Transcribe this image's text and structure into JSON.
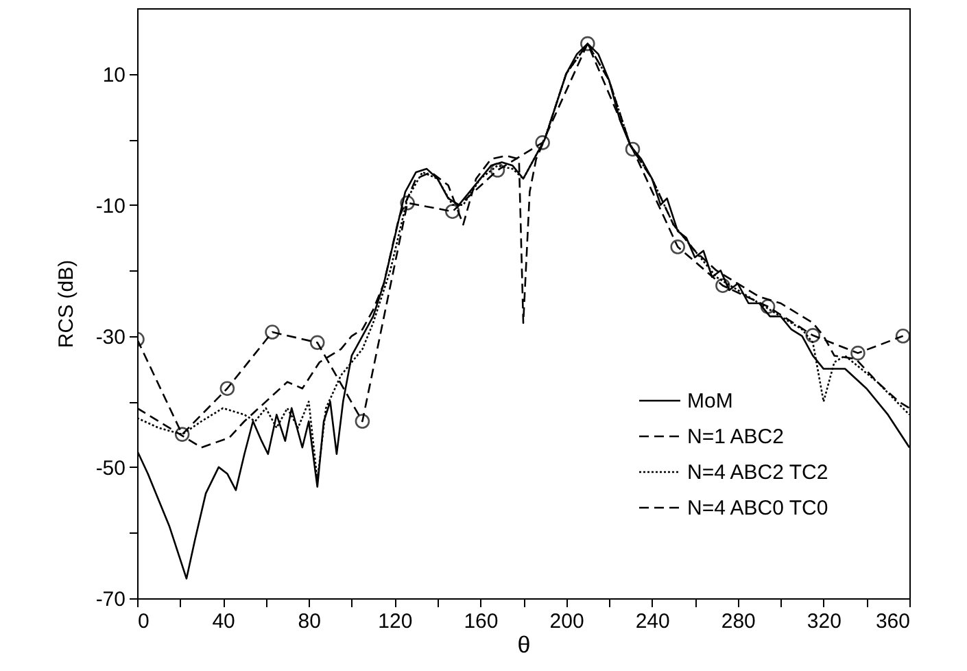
{
  "chart_data": {
    "type": "line",
    "xlabel": "θ",
    "ylabel": "RCS (dB)",
    "xlim": [
      0,
      360
    ],
    "ylim": [
      -70,
      20
    ],
    "xticks": [
      0,
      {
        "value": 20,
        "label": null
      },
      40,
      {
        "value": 60,
        "label": null
      },
      80,
      {
        "value": 100,
        "label": null
      },
      120,
      {
        "value": 140,
        "label": null
      },
      160,
      {
        "value": 180,
        "label": null
      },
      200,
      {
        "value": 220,
        "label": null
      },
      240,
      {
        "value": 260,
        "label": null
      },
      280,
      {
        "value": 300,
        "label": null
      },
      320,
      {
        "value": 340,
        "label": null
      },
      360
    ],
    "yticks": [
      -70,
      {
        "value": -60,
        "label": null
      },
      -50,
      {
        "value": -40,
        "label": null
      },
      -30,
      {
        "value": -20,
        "label": null
      },
      -10,
      {
        "value": 0,
        "label": null
      },
      10
    ],
    "grid": false,
    "legend": "bottom right",
    "series": [
      {
        "name": "MoM",
        "color": "#000000",
        "line_style": "solid",
        "marker": "none",
        "x": [
          0,
          5,
          10,
          15,
          20,
          23,
          27,
          32,
          38,
          42,
          46,
          50,
          54,
          58,
          61,
          65,
          69,
          72,
          77,
          80,
          84,
          87,
          90,
          93,
          96,
          100,
          105,
          110,
          115,
          120,
          125,
          130,
          135,
          140,
          145,
          150,
          155,
          160,
          165,
          170,
          175,
          180,
          185,
          190,
          195,
          200,
          205,
          210,
          215,
          220,
          225,
          230,
          235,
          240,
          244,
          247,
          252,
          256,
          260,
          264,
          268,
          272,
          276,
          280,
          285,
          290,
          295,
          300,
          305,
          310,
          315,
          320,
          325,
          330,
          340,
          350,
          360
        ],
        "values": [
          -47.5,
          -51,
          -55,
          -59,
          -64,
          -67,
          -61,
          -54,
          -50,
          -51,
          -53.5,
          -48,
          -43,
          -46,
          -48,
          -42,
          -46,
          -41,
          -47,
          -43,
          -53,
          -43,
          -40,
          -48,
          -40,
          -33,
          -30,
          -27,
          -22,
          -15,
          -8,
          -5,
          -4.5,
          -6,
          -9,
          -10,
          -8,
          -6,
          -4,
          -3.5,
          -4,
          -6,
          -3,
          0,
          5,
          10,
          13,
          14.6,
          13,
          9,
          3,
          -1,
          -3,
          -6,
          -10,
          -9,
          -14,
          -15,
          -18,
          -17,
          -21,
          -20,
          -23,
          -22,
          -25,
          -25,
          -27,
          -27,
          -29,
          -30,
          -33,
          -35,
          -35,
          -35,
          -38,
          -42,
          -47
        ]
      },
      {
        "name": "N=1 ABC2",
        "color": "#000000",
        "line_style": "dashed",
        "marker": "none",
        "x": [
          0,
          10,
          20,
          30,
          43,
          50,
          60,
          70,
          77,
          85,
          95,
          100,
          105,
          110,
          115,
          122,
          130,
          137,
          145,
          152,
          158,
          165,
          172,
          178,
          180,
          183,
          186,
          190,
          200,
          210,
          220,
          230,
          240,
          250,
          260,
          270,
          280,
          290,
          300,
          310,
          315,
          320,
          325,
          335,
          345,
          355,
          360
        ],
        "values": [
          -41,
          -43,
          -45,
          -47,
          -45.5,
          -43,
          -40,
          -37,
          -38,
          -34,
          -32,
          -30,
          -29,
          -26,
          -22,
          -12,
          -6,
          -5,
          -7,
          -13,
          -6,
          -3,
          -2.5,
          -3,
          -28,
          -8,
          -3,
          0,
          10,
          14.6,
          9,
          -1,
          -6,
          -13,
          -17,
          -20,
          -22,
          -24,
          -25,
          -27,
          -28,
          -30,
          -33,
          -33.5,
          -37,
          -40,
          -41
        ]
      },
      {
        "name": "N=4 ABC2 TC2",
        "color": "#000000",
        "line_style": "dotted",
        "marker": "none",
        "x": [
          0,
          10,
          21,
          30,
          40,
          50,
          55,
          60,
          65,
          70,
          75,
          80,
          84,
          88,
          95,
          100,
          105,
          110,
          118,
          126,
          133,
          140,
          147,
          152,
          160,
          168,
          175,
          180,
          185,
          190,
          200,
          210,
          220,
          230,
          240,
          250,
          260,
          270,
          280,
          290,
          300,
          310,
          315,
          320,
          325,
          330,
          345,
          360
        ],
        "values": [
          -42.5,
          -44,
          -45,
          -43,
          -41,
          -42,
          -43,
          -41,
          -44,
          -41,
          -44,
          -40,
          -52,
          -41,
          -36,
          -34,
          -32,
          -28,
          -20,
          -9,
          -5,
          -6,
          -10,
          -10,
          -6,
          -4,
          -4.5,
          -6,
          -3,
          0,
          10,
          14.6,
          9,
          -1,
          -6,
          -13,
          -17,
          -21,
          -23,
          -25,
          -27,
          -29,
          -31,
          -40,
          -34,
          -33,
          -37,
          -42
        ]
      },
      {
        "name": "N=4 ABC0 TC0",
        "color": "#000000",
        "line_style": "dashed",
        "marker": "circle",
        "x": [
          0,
          21,
          42,
          63,
          84,
          105,
          126,
          147,
          168,
          189,
          210,
          231,
          252,
          273,
          294,
          315,
          336,
          357
        ],
        "values": [
          -30.5,
          -45,
          -38,
          -29.4,
          -31,
          -43,
          -9.7,
          -11,
          -4.7,
          -0.5,
          14.6,
          -1.5,
          -16.4,
          -22.3,
          -25.5,
          -29.9,
          -32.6,
          -30
        ]
      }
    ]
  }
}
